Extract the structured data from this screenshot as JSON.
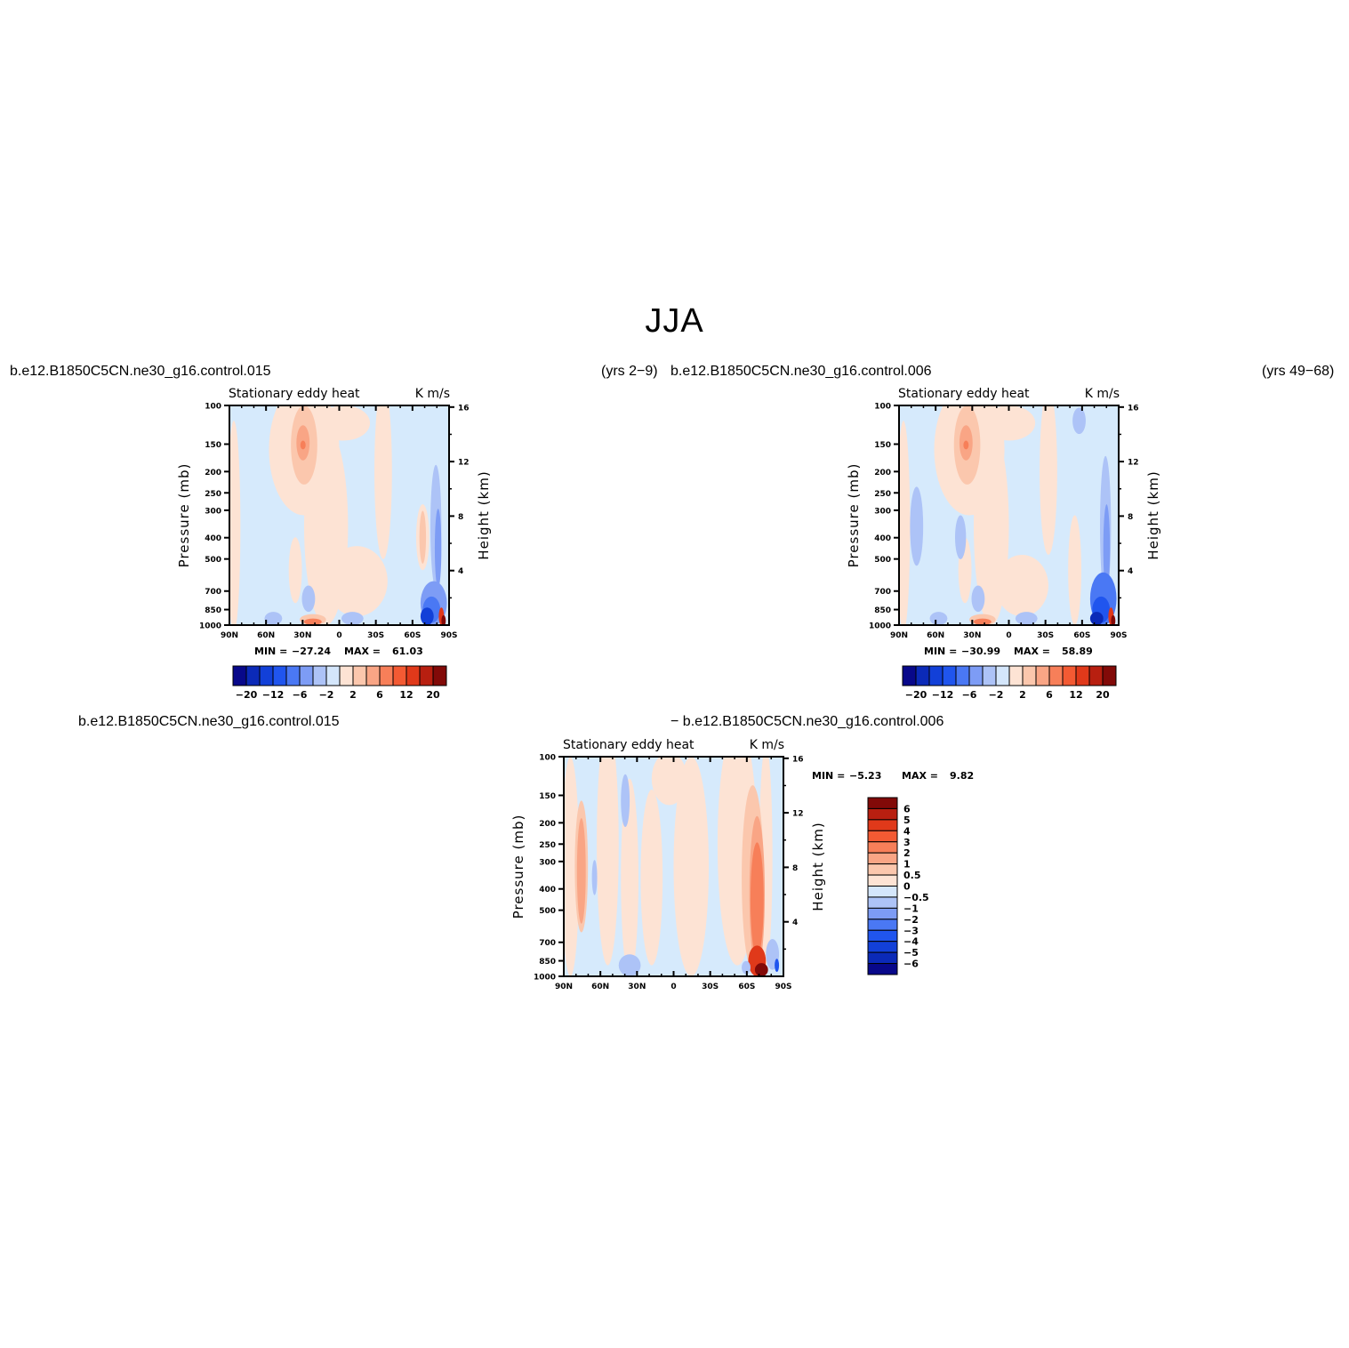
{
  "title": "JJA",
  "colors": {
    "neg": [
      "#08088a",
      "#0b2ab8",
      "#1240d8",
      "#2055ee",
      "#4a78f4",
      "#7d9cf5",
      "#adc3f7",
      "#d4e6fb"
    ],
    "pos": [
      "#fde3d4",
      "#fbc7ad",
      "#f9a585",
      "#f77f59",
      "#f35a33",
      "#e0391a",
      "#b81f10",
      "#820a08"
    ],
    "background": "#d6eafc"
  },
  "chart_data": [
    {
      "type": "contour",
      "name": "panel-1",
      "case_left": "b.e12.B1850C5CN.ne30_g16.control.015",
      "case_right": "(yrs 2−9)",
      "left_string": "Stationary eddy heat",
      "right_string": "K m/s",
      "xlabel": "",
      "ylabel": "Pressure (mb)",
      "ylabel_right": "Height (km)",
      "x_ticks": [
        "90N",
        "60N",
        "30N",
        "0",
        "30S",
        "60S",
        "90S"
      ],
      "y_ticks": [
        "100",
        "150",
        "200",
        "250",
        "300",
        "400",
        "500",
        "700",
        "850",
        "1000"
      ],
      "height_ticks": [
        "16",
        "12",
        "8",
        "4"
      ],
      "min_label": "MIN =",
      "min_value": "−27.24",
      "max_label": "MAX =",
      "max_value": "61.03",
      "colorbar_labels": [
        "−20",
        "−12",
        "−6",
        "−2",
        "2",
        "6",
        "12",
        "20"
      ]
    },
    {
      "type": "contour",
      "name": "panel-2",
      "case_left": "b.e12.B1850C5CN.ne30_g16.control.006",
      "case_right": "(yrs 49−68)",
      "left_string": "Stationary eddy heat",
      "right_string": "K m/s",
      "xlabel": "",
      "ylabel": "Pressure (mb)",
      "ylabel_right": "Height (km)",
      "x_ticks": [
        "90N",
        "60N",
        "30N",
        "0",
        "30S",
        "60S",
        "90S"
      ],
      "y_ticks": [
        "100",
        "150",
        "200",
        "250",
        "300",
        "400",
        "500",
        "700",
        "850",
        "1000"
      ],
      "height_ticks": [
        "16",
        "12",
        "8",
        "4"
      ],
      "min_label": "MIN =",
      "min_value": "−30.99",
      "max_label": "MAX =",
      "max_value": "58.89",
      "colorbar_labels": [
        "−20",
        "−12",
        "−6",
        "−2",
        "2",
        "6",
        "12",
        "20"
      ]
    },
    {
      "type": "contour",
      "name": "panel-diff",
      "case_left": "b.e12.B1850C5CN.ne30_g16.control.015",
      "case_right": "− b.e12.B1850C5CN.ne30_g16.control.006",
      "left_string": "Stationary eddy heat",
      "right_string": "K m/s",
      "xlabel": "",
      "ylabel": "Pressure (mb)",
      "ylabel_right": "Height (km)",
      "x_ticks": [
        "90N",
        "60N",
        "30N",
        "0",
        "30S",
        "60S",
        "90S"
      ],
      "y_ticks": [
        "100",
        "150",
        "200",
        "250",
        "300",
        "400",
        "500",
        "700",
        "850",
        "1000"
      ],
      "height_ticks": [
        "16",
        "12",
        "8",
        "4"
      ],
      "min_label": "MIN =",
      "min_value": "−5.23",
      "max_label": "MAX =",
      "max_value": "9.82",
      "colorbar_labels": [
        "6",
        "5",
        "4",
        "3",
        "2",
        "1",
        "0.5",
        "0",
        "−0.5",
        "−1",
        "−2",
        "−3",
        "−4",
        "−5",
        "−6"
      ]
    }
  ]
}
